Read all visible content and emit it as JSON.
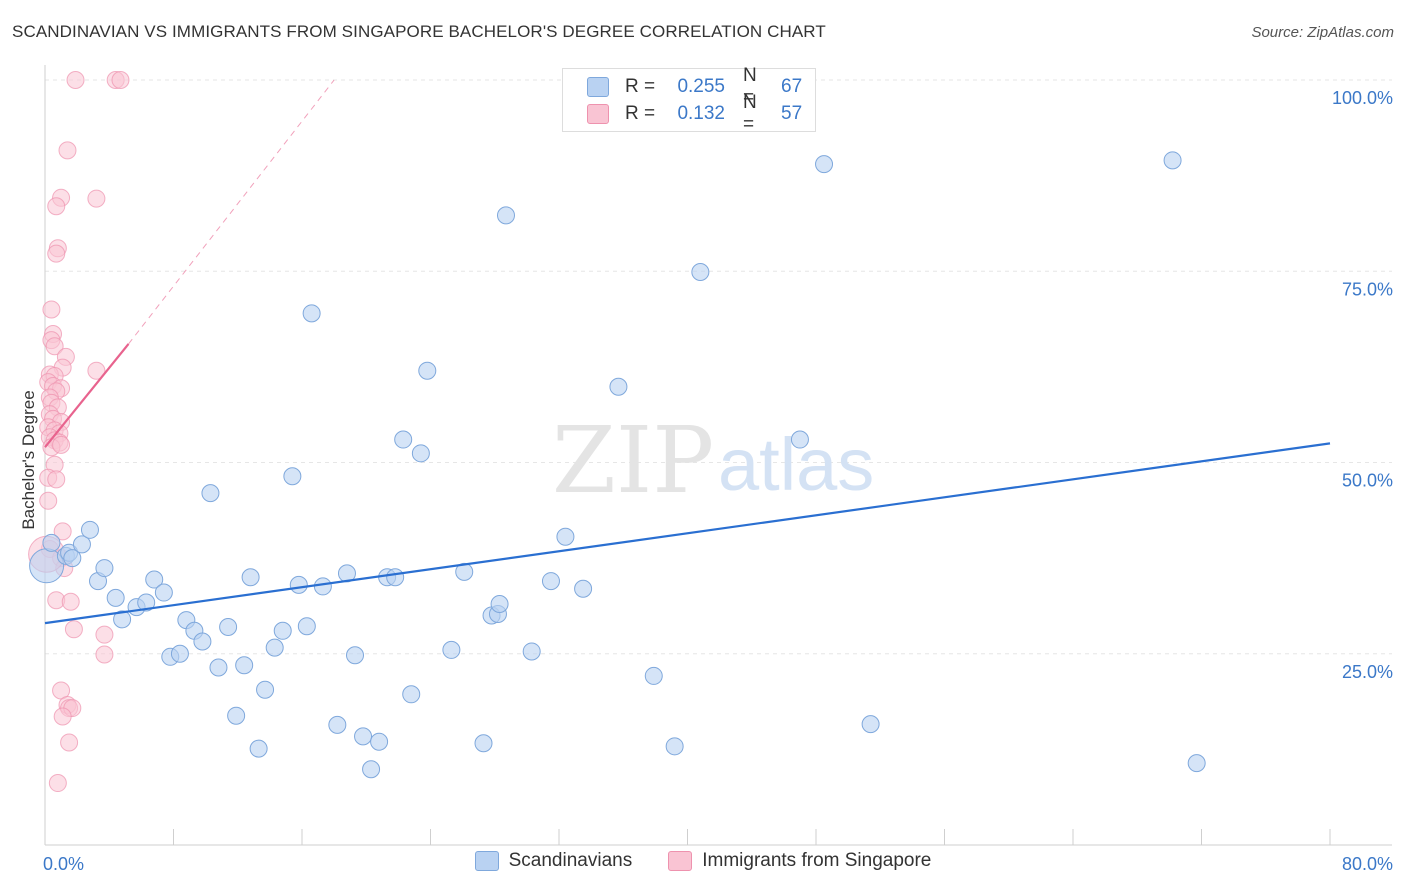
{
  "title": "SCANDINAVIAN VS IMMIGRANTS FROM SINGAPORE BACHELOR'S DEGREE CORRELATION CHART",
  "source": "Source: ZipAtlas.com",
  "watermark": {
    "zip": "ZIP",
    "atlas": "atlas"
  },
  "stats": [
    {
      "r_label": "R =",
      "r_value": "0.255",
      "n_label": "N =",
      "n_value": "67"
    },
    {
      "r_label": "R =",
      "r_value": "0.132",
      "n_label": "N =",
      "n_value": "57"
    }
  ],
  "legend": {
    "series1": "Scandinavians",
    "series2": "Immigrants from Singapore"
  },
  "colors": {
    "blue_fill": "#b9d2f2",
    "blue_stroke": "#7fa8dc",
    "blue_line": "#2a6fd1",
    "pink_fill": "#f9c4d3",
    "pink_stroke": "#ee92ae",
    "pink_line": "#e8638e",
    "tick_text": "#3b78c8"
  },
  "chart_data": {
    "type": "scatter",
    "title": "SCANDINAVIAN VS IMMIGRANTS FROM SINGAPORE BACHELOR'S DEGREE CORRELATION CHART",
    "xlabel": "",
    "ylabel": "Bachelor's Degree",
    "xlim": [
      0,
      80
    ],
    "ylim": [
      0,
      100
    ],
    "x_tick_labels": [
      {
        "value": 0,
        "label": "0.0%"
      },
      {
        "value": 80,
        "label": "80.0%"
      }
    ],
    "y_tick_labels": [
      {
        "value": 25,
        "label": "25.0%"
      },
      {
        "value": 50,
        "label": "50.0%"
      },
      {
        "value": 75,
        "label": "75.0%"
      },
      {
        "value": 100,
        "label": "100.0%"
      }
    ],
    "grid": true,
    "series": [
      {
        "name": "Scandinavians",
        "r": 0.255,
        "n": 67,
        "trend": {
          "x": [
            0,
            80
          ],
          "y": [
            29,
            52.5
          ]
        },
        "points": [
          [
            0.1,
            36.5
          ],
          [
            0.4,
            39.5
          ],
          [
            1.3,
            37.8
          ],
          [
            1.5,
            38.2
          ],
          [
            1.7,
            37.5
          ],
          [
            2.3,
            39.3
          ],
          [
            2.8,
            41.2
          ],
          [
            3.3,
            34.5
          ],
          [
            3.7,
            36.2
          ],
          [
            4.4,
            32.3
          ],
          [
            4.8,
            29.5
          ],
          [
            5.7,
            31.1
          ],
          [
            6.3,
            31.7
          ],
          [
            6.8,
            34.7
          ],
          [
            7.4,
            33.0
          ],
          [
            7.8,
            24.6
          ],
          [
            8.4,
            25.0
          ],
          [
            8.8,
            29.4
          ],
          [
            9.3,
            28.0
          ],
          [
            9.8,
            26.6
          ],
          [
            10.3,
            46.0
          ],
          [
            10.8,
            23.2
          ],
          [
            11.4,
            28.5
          ],
          [
            11.9,
            16.9
          ],
          [
            12.4,
            23.5
          ],
          [
            12.8,
            35.0
          ],
          [
            13.3,
            12.6
          ],
          [
            13.7,
            20.3
          ],
          [
            14.3,
            25.8
          ],
          [
            14.8,
            28.0
          ],
          [
            15.4,
            48.2
          ],
          [
            15.8,
            34.0
          ],
          [
            16.3,
            28.6
          ],
          [
            16.6,
            69.5
          ],
          [
            17.3,
            33.8
          ],
          [
            18.2,
            15.7
          ],
          [
            18.8,
            35.5
          ],
          [
            19.3,
            24.8
          ],
          [
            19.8,
            14.2
          ],
          [
            20.3,
            9.9
          ],
          [
            20.8,
            13.5
          ],
          [
            21.3,
            35.0
          ],
          [
            21.8,
            35.0
          ],
          [
            22.3,
            53.0
          ],
          [
            22.8,
            19.7
          ],
          [
            23.4,
            51.2
          ],
          [
            23.8,
            62.0
          ],
          [
            25.3,
            25.5
          ],
          [
            26.1,
            35.7
          ],
          [
            27.3,
            13.3
          ],
          [
            27.8,
            30.0
          ],
          [
            28.2,
            30.2
          ],
          [
            28.3,
            31.5
          ],
          [
            28.7,
            82.3
          ],
          [
            30.3,
            25.3
          ],
          [
            31.5,
            34.5
          ],
          [
            32.4,
            40.3
          ],
          [
            33.5,
            33.5
          ],
          [
            35.7,
            59.9
          ],
          [
            37.9,
            22.1
          ],
          [
            39.2,
            12.9
          ],
          [
            40.8,
            74.9
          ],
          [
            47.0,
            53.0
          ],
          [
            48.5,
            89.0
          ],
          [
            51.4,
            15.8
          ],
          [
            70.2,
            89.5
          ],
          [
            71.7,
            10.7
          ]
        ]
      },
      {
        "name": "Immigrants from Singapore",
        "r": 0.132,
        "n": 57,
        "trend": {
          "x": [
            0,
            5.2
          ],
          "y": [
            52,
            65.5
          ]
        },
        "trend_dashed": {
          "x": [
            5.2,
            18
          ],
          "y": [
            65.5,
            100
          ]
        },
        "points": [
          [
            1.9,
            100
          ],
          [
            4.4,
            100
          ],
          [
            4.7,
            100
          ],
          [
            1.4,
            90.8
          ],
          [
            1.0,
            84.6
          ],
          [
            3.2,
            84.5
          ],
          [
            0.7,
            83.5
          ],
          [
            0.8,
            78.0
          ],
          [
            0.7,
            77.3
          ],
          [
            0.4,
            70.0
          ],
          [
            0.5,
            66.8
          ],
          [
            0.4,
            66.0
          ],
          [
            0.6,
            65.2
          ],
          [
            1.3,
            63.8
          ],
          [
            1.1,
            62.4
          ],
          [
            3.2,
            62.0
          ],
          [
            0.3,
            61.5
          ],
          [
            0.6,
            61.3
          ],
          [
            0.2,
            60.5
          ],
          [
            0.5,
            60.0
          ],
          [
            1.0,
            59.7
          ],
          [
            0.7,
            59.3
          ],
          [
            0.3,
            58.5
          ],
          [
            0.4,
            57.8
          ],
          [
            0.8,
            57.2
          ],
          [
            0.3,
            56.3
          ],
          [
            0.5,
            55.7
          ],
          [
            1.0,
            55.3
          ],
          [
            0.2,
            54.6
          ],
          [
            0.6,
            54.2
          ],
          [
            0.9,
            53.8
          ],
          [
            0.3,
            53.3
          ],
          [
            0.6,
            52.9
          ],
          [
            0.9,
            52.6
          ],
          [
            0.4,
            52.0
          ],
          [
            1.0,
            52.3
          ],
          [
            0.6,
            49.7
          ],
          [
            0.2,
            48.0
          ],
          [
            0.7,
            47.8
          ],
          [
            0.2,
            45.0
          ],
          [
            1.1,
            41.0
          ],
          [
            0.3,
            38.7
          ],
          [
            1.0,
            37.5
          ],
          [
            1.2,
            36.2
          ],
          [
            0.7,
            32.0
          ],
          [
            1.6,
            31.8
          ],
          [
            1.8,
            28.2
          ],
          [
            3.7,
            27.5
          ],
          [
            3.7,
            24.9
          ],
          [
            1.0,
            20.2
          ],
          [
            1.4,
            18.3
          ],
          [
            1.5,
            17.9
          ],
          [
            1.7,
            17.9
          ],
          [
            1.1,
            16.8
          ],
          [
            1.5,
            13.4
          ],
          [
            0.8,
            8.1
          ],
          [
            0.1,
            38.0
          ]
        ]
      }
    ]
  }
}
